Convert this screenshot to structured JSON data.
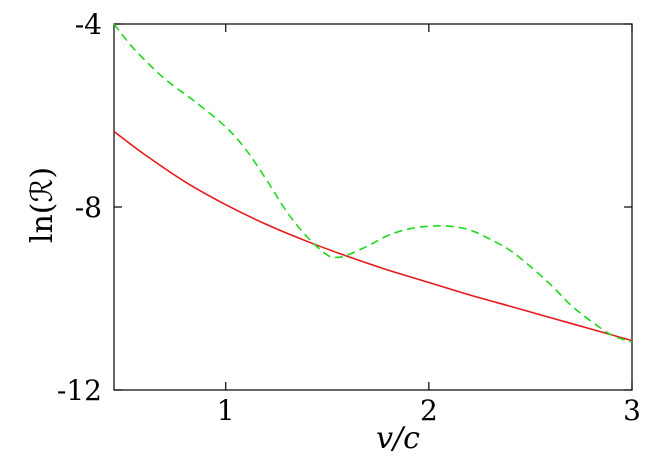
{
  "chart_data": {
    "type": "line",
    "title": "",
    "xlabel": "v/c",
    "ylabel": "ln(ℛ)",
    "xlim": [
      0.45,
      3.0
    ],
    "ylim": [
      -12,
      -4
    ],
    "xticks": [
      1,
      2,
      3
    ],
    "yticks": [
      -4,
      -8,
      -12
    ],
    "xtick_labels": [
      "1",
      "2",
      "3"
    ],
    "ytick_labels": [
      "-4",
      "-8",
      "-12"
    ],
    "grid": false,
    "legend": "none",
    "series": [
      {
        "color": "#e8191a",
        "style": "solid",
        "x": [
          0.45,
          0.6,
          0.8,
          1.0,
          1.2,
          1.4,
          1.6,
          1.8,
          2.0,
          2.2,
          2.4,
          2.6,
          2.8,
          3.0
        ],
        "y": [
          -6.35,
          -6.85,
          -7.45,
          -7.95,
          -8.38,
          -8.75,
          -9.08,
          -9.38,
          -9.65,
          -9.92,
          -10.17,
          -10.42,
          -10.67,
          -10.92
        ]
      },
      {
        "color": "#1ed81e",
        "style": "dashed",
        "x": [
          0.45,
          0.55,
          0.7,
          0.85,
          1.0,
          1.1,
          1.2,
          1.3,
          1.4,
          1.5,
          1.55,
          1.6,
          1.7,
          1.8,
          1.9,
          2.0,
          2.1,
          2.2,
          2.3,
          2.4,
          2.5,
          2.6,
          2.7,
          2.8,
          2.9,
          3.0
        ],
        "y": [
          -4.0,
          -4.55,
          -5.2,
          -5.7,
          -6.25,
          -6.75,
          -7.4,
          -8.1,
          -8.65,
          -9.05,
          -9.1,
          -9.05,
          -8.85,
          -8.62,
          -8.48,
          -8.42,
          -8.42,
          -8.5,
          -8.7,
          -8.95,
          -9.3,
          -9.7,
          -10.15,
          -10.5,
          -10.8,
          -10.95
        ]
      }
    ]
  }
}
